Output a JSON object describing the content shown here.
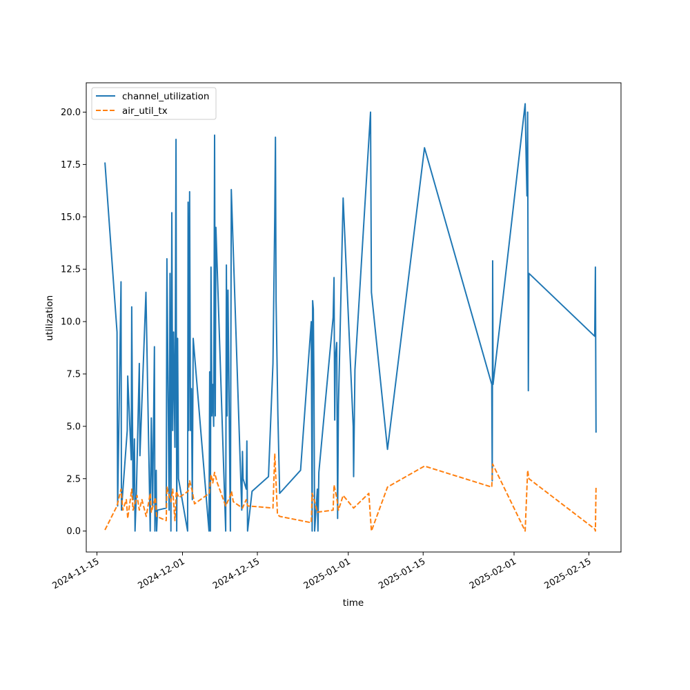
{
  "chart_data": {
    "type": "line",
    "title": "",
    "xlabel": "time",
    "ylabel": "utilization",
    "x_axis_type": "date",
    "xlim": [
      "2024-11-13",
      "2025-02-21"
    ],
    "ylim": [
      -1.0,
      21.4
    ],
    "x_ticks": [
      "2024-11-15",
      "2024-12-01",
      "2024-12-15",
      "2025-01-01",
      "2025-01-15",
      "2025-02-01",
      "2025-02-15"
    ],
    "y_ticks": [
      "0.0",
      "2.5",
      "5.0",
      "7.5",
      "10.0",
      "12.5",
      "15.0",
      "17.5",
      "20.0"
    ],
    "grid": false,
    "legend_position": "top-left",
    "series": [
      {
        "name": "channel_utilization",
        "color": "#1f77b4",
        "style": "solid",
        "points": [
          [
            "2024-11-16T12:00",
            17.6
          ],
          [
            "2024-11-18T18:00",
            9.5
          ],
          [
            "2024-11-18T21:00",
            1.2
          ],
          [
            "2024-11-19T12:00",
            11.9
          ],
          [
            "2024-11-19T14:00",
            1.0
          ],
          [
            "2024-11-20T16:00",
            4.8
          ],
          [
            "2024-11-20T18:00",
            7.4
          ],
          [
            "2024-11-21T10:00",
            3.4
          ],
          [
            "2024-11-21T12:00",
            10.7
          ],
          [
            "2024-11-21T18:00",
            1.5
          ],
          [
            "2024-11-22T00:00",
            4.4
          ],
          [
            "2024-11-22T03:00",
            0.0
          ],
          [
            "2024-11-22T09:00",
            1.9
          ],
          [
            "2024-11-22T22:00",
            8.0
          ],
          [
            "2024-11-23T01:00",
            3.6
          ],
          [
            "2024-11-24T04:00",
            11.4
          ],
          [
            "2024-11-24T23:00",
            0.0
          ],
          [
            "2024-11-25T04:00",
            5.4
          ],
          [
            "2024-11-25T10:00",
            1.2
          ],
          [
            "2024-11-25T18:00",
            8.8
          ],
          [
            "2024-11-25T20:00",
            0.0
          ],
          [
            "2024-11-26T02:00",
            2.9
          ],
          [
            "2024-11-26T04:00",
            0.0
          ],
          [
            "2024-11-26T08:00",
            1.0
          ],
          [
            "2024-11-27T23:00",
            1.1
          ],
          [
            "2024-11-28T02:00",
            13.0
          ],
          [
            "2024-11-28T12:00",
            1.0
          ],
          [
            "2024-11-28T16:00",
            12.3
          ],
          [
            "2024-11-28T20:00",
            0.0
          ],
          [
            "2024-11-29T00:00",
            15.2
          ],
          [
            "2024-11-29T04:00",
            4.8
          ],
          [
            "2024-11-29T08:00",
            9.5
          ],
          [
            "2024-11-29T14:00",
            4.0
          ],
          [
            "2024-11-29T19:00",
            18.7
          ],
          [
            "2024-11-29T22:00",
            0.0
          ],
          [
            "2024-11-30T02:00",
            9.2
          ],
          [
            "2024-11-30T06:00",
            2.5
          ],
          [
            "2024-12-01T23:00",
            0.0
          ],
          [
            "2024-12-02T01:00",
            15.7
          ],
          [
            "2024-12-02T04:00",
            4.8
          ],
          [
            "2024-12-02T08:00",
            16.2
          ],
          [
            "2024-12-02T12:00",
            4.8
          ],
          [
            "2024-12-02T16:00",
            6.8
          ],
          [
            "2024-12-02T20:00",
            1.5
          ],
          [
            "2024-12-03T00:00",
            9.2
          ],
          [
            "2024-12-05T23:00",
            0.0
          ],
          [
            "2024-12-06T02:00",
            7.6
          ],
          [
            "2024-12-06T05:00",
            0.0
          ],
          [
            "2024-12-06T08:00",
            12.6
          ],
          [
            "2024-12-06T12:00",
            5.5
          ],
          [
            "2024-12-06T16:00",
            7.0
          ],
          [
            "2024-12-06T20:00",
            5.0
          ],
          [
            "2024-12-07T00:00",
            18.9
          ],
          [
            "2024-12-07T03:00",
            5.5
          ],
          [
            "2024-12-07T06:00",
            14.5
          ],
          [
            "2024-12-09T02:00",
            0.0
          ],
          [
            "2024-12-09T05:00",
            12.7
          ],
          [
            "2024-12-09T08:00",
            5.5
          ],
          [
            "2024-12-09T12:00",
            11.5
          ],
          [
            "2024-12-09T23:00",
            0.0
          ],
          [
            "2024-12-10T03:00",
            16.3
          ],
          [
            "2024-12-12T02:00",
            1.0
          ],
          [
            "2024-12-12T05:00",
            3.8
          ],
          [
            "2024-12-12T08:00",
            2.5
          ],
          [
            "2024-12-12T22:00",
            2.0
          ],
          [
            "2024-12-13T01:00",
            4.3
          ],
          [
            "2024-12-13T04:00",
            0.0
          ],
          [
            "2024-12-14T00:00",
            1.9
          ],
          [
            "2024-12-17T02:00",
            2.6
          ],
          [
            "2024-12-17T22:00",
            8.0
          ],
          [
            "2024-12-18T06:00",
            15.0
          ],
          [
            "2024-12-18T09:00",
            18.8
          ],
          [
            "2024-12-18T12:00",
            11.0
          ],
          [
            "2024-12-18T20:00",
            5.6
          ],
          [
            "2024-12-19T04:00",
            1.8
          ],
          [
            "2024-12-23T02:00",
            2.9
          ],
          [
            "2024-12-25T02:00",
            10.0
          ],
          [
            "2024-12-25T06:00",
            0.0
          ],
          [
            "2024-12-25T08:00",
            11.0
          ],
          [
            "2024-12-25T11:00",
            10.6
          ],
          [
            "2024-12-25T14:00",
            7.0
          ],
          [
            "2024-12-25T17:00",
            0.0
          ],
          [
            "2024-12-26T05:00",
            2.0
          ],
          [
            "2024-12-26T08:00",
            0.0
          ],
          [
            "2024-12-26T12:00",
            2.8
          ],
          [
            "2024-12-29T04:00",
            10.2
          ],
          [
            "2024-12-29T08:00",
            12.1
          ],
          [
            "2024-12-29T11:00",
            5.3
          ],
          [
            "2024-12-29T14:00",
            8.3
          ],
          [
            "2024-12-29T20:00",
            9.0
          ],
          [
            "2024-12-30T00:00",
            0.6
          ],
          [
            "2024-12-30T04:00",
            6.0
          ],
          [
            "2024-12-31T01:00",
            15.9
          ],
          [
            "2025-01-01T22:00",
            5.0
          ],
          [
            "2025-01-02T00:00",
            2.6
          ],
          [
            "2025-01-02T06:00",
            7.7
          ],
          [
            "2025-01-05T04:00",
            20.0
          ],
          [
            "2025-01-05T08:00",
            11.4
          ],
          [
            "2025-01-08T08:00",
            3.9
          ],
          [
            "2025-01-15T06:00",
            18.3
          ],
          [
            "2025-01-27T20:00",
            7.0
          ],
          [
            "2025-01-27T22:00",
            2.4
          ],
          [
            "2025-01-28T00:00",
            12.9
          ],
          [
            "2025-01-28T02:00",
            7.0
          ],
          [
            "2025-02-03T02:00",
            20.4
          ],
          [
            "2025-02-03T06:00",
            18.0
          ],
          [
            "2025-02-03T10:00",
            16.0
          ],
          [
            "2025-02-03T13:00",
            20.0
          ],
          [
            "2025-02-03T16:00",
            6.7
          ],
          [
            "2025-02-03T19:00",
            12.3
          ],
          [
            "2025-02-16T02:00",
            9.3
          ],
          [
            "2025-02-16T05:00",
            12.6
          ],
          [
            "2025-02-16T08:00",
            4.7
          ]
        ]
      },
      {
        "name": "air_util_tx",
        "color": "#ff7f0e",
        "style": "dashed",
        "points": [
          [
            "2024-11-16T12:00",
            0.05
          ],
          [
            "2024-11-18T18:00",
            1.2
          ],
          [
            "2024-11-19T12:00",
            2.0
          ],
          [
            "2024-11-19T20:00",
            1.0
          ],
          [
            "2024-11-20T12:00",
            1.5
          ],
          [
            "2024-11-20T18:00",
            0.6
          ],
          [
            "2024-11-21T12:00",
            2.0
          ],
          [
            "2024-11-21T18:00",
            1.0
          ],
          [
            "2024-11-22T12:00",
            1.7
          ],
          [
            "2024-11-22T22:00",
            1.0
          ],
          [
            "2024-11-23T10:00",
            1.5
          ],
          [
            "2024-11-24T05:00",
            0.7
          ],
          [
            "2024-11-24T23:00",
            1.8
          ],
          [
            "2024-11-25T04:00",
            0.9
          ],
          [
            "2024-11-25T22:00",
            1.6
          ],
          [
            "2024-11-26T04:00",
            0.7
          ],
          [
            "2024-11-27T23:00",
            0.5
          ],
          [
            "2024-11-28T02:00",
            2.1
          ],
          [
            "2024-11-28T20:00",
            1.4
          ],
          [
            "2024-11-29T04:00",
            2.0
          ],
          [
            "2024-11-29T14:00",
            0.5
          ],
          [
            "2024-11-29T20:00",
            1.9
          ],
          [
            "2024-11-30T08:00",
            1.6
          ],
          [
            "2024-12-02T01:00",
            1.9
          ],
          [
            "2024-12-02T08:00",
            2.4
          ],
          [
            "2024-12-02T20:00",
            1.9
          ],
          [
            "2024-12-03T06:00",
            1.3
          ],
          [
            "2024-12-06T00:00",
            1.8
          ],
          [
            "2024-12-06T08:00",
            2.7
          ],
          [
            "2024-12-06T16:00",
            2.3
          ],
          [
            "2024-12-07T00:00",
            2.8
          ],
          [
            "2024-12-07T12:00",
            2.3
          ],
          [
            "2024-12-09T02:00",
            1.2
          ],
          [
            "2024-12-09T23:00",
            1.7
          ],
          [
            "2024-12-10T04:00",
            1.9
          ],
          [
            "2024-12-10T12:00",
            1.4
          ],
          [
            "2024-12-12T05:00",
            1.1
          ],
          [
            "2024-12-12T22:00",
            1.5
          ],
          [
            "2024-12-13T04:00",
            1.2
          ],
          [
            "2024-12-17T22:00",
            1.1
          ],
          [
            "2024-12-18T06:00",
            3.7
          ],
          [
            "2024-12-18T12:00",
            2.3
          ],
          [
            "2024-12-18T18:00",
            0.8
          ],
          [
            "2024-12-19T04:00",
            0.7
          ],
          [
            "2024-12-25T02:00",
            0.4
          ],
          [
            "2024-12-25T06:00",
            1.8
          ],
          [
            "2024-12-25T17:00",
            1.4
          ],
          [
            "2024-12-26T05:00",
            0.9
          ],
          [
            "2024-12-29T04:00",
            1.0
          ],
          [
            "2024-12-29T08:00",
            2.2
          ],
          [
            "2024-12-29T20:00",
            1.6
          ],
          [
            "2024-12-30T04:00",
            1.0
          ],
          [
            "2024-12-31T01:00",
            1.7
          ],
          [
            "2025-01-02T00:00",
            1.1
          ],
          [
            "2025-01-04T20:00",
            1.8
          ],
          [
            "2025-01-05T08:00",
            0.0
          ],
          [
            "2025-01-08T08:00",
            2.1
          ],
          [
            "2025-01-15T06:00",
            3.1
          ],
          [
            "2025-01-27T20:00",
            2.1
          ],
          [
            "2025-01-28T00:00",
            3.2
          ],
          [
            "2025-02-03T02:00",
            0.0
          ],
          [
            "2025-02-03T13:00",
            2.9
          ],
          [
            "2025-02-03T19:00",
            2.5
          ],
          [
            "2025-02-16T02:00",
            0.1
          ],
          [
            "2025-02-16T05:00",
            0.0
          ],
          [
            "2025-02-16T08:00",
            2.1
          ]
        ]
      }
    ]
  }
}
